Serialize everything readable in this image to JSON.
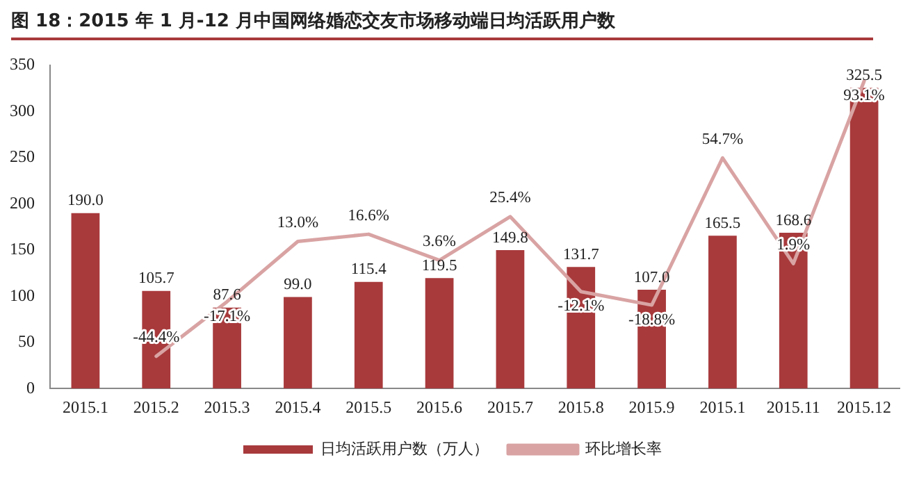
{
  "chart_data": {
    "type": "bar",
    "title": "图 18：2015 年 1 月-12 月中国网络婚恋交友市场移动端日均活跃用户数",
    "categories": [
      "2015.1",
      "2015.2",
      "2015.3",
      "2015.4",
      "2015.5",
      "2015.6",
      "2015.7",
      "2015.8",
      "2015.9",
      "2015.1",
      "2015.11",
      "2015.12"
    ],
    "series": [
      {
        "name": "日均活跃用户数（万人）",
        "color": "#a83a3c",
        "values": [
          190.0,
          105.7,
          87.6,
          99.0,
          115.4,
          119.5,
          149.8,
          131.7,
          107.0,
          165.5,
          168.6,
          325.5
        ],
        "value_labels": [
          "190.0",
          "105.7",
          "87.6",
          "99.0",
          "115.4",
          "119.5",
          "149.8",
          "131.7",
          "107.0",
          "165.5",
          "168.6",
          "325.5"
        ]
      },
      {
        "name": "环比增长率",
        "type": "line",
        "axis": "y2",
        "color": "#d9a3a3",
        "values": [
          null,
          -44.4,
          -17.1,
          13.0,
          16.6,
          3.6,
          25.4,
          -12.1,
          -18.8,
          54.7,
          1.9,
          93.1
        ],
        "value_labels": [
          null,
          "-44.4%",
          "-17.1%",
          "13.0%",
          "16.6%",
          "3.6%",
          "25.4%",
          "-12.1%",
          "-18.8%",
          "54.7%",
          "1.9%",
          "93.1%"
        ]
      }
    ],
    "ylim": [
      0,
      350
    ],
    "yticks": [
      0,
      50,
      100,
      150,
      200,
      250,
      300,
      350
    ],
    "y2lim": [
      -60.5,
      101
    ],
    "grid": false,
    "legend": "bottom",
    "marker": "none"
  }
}
